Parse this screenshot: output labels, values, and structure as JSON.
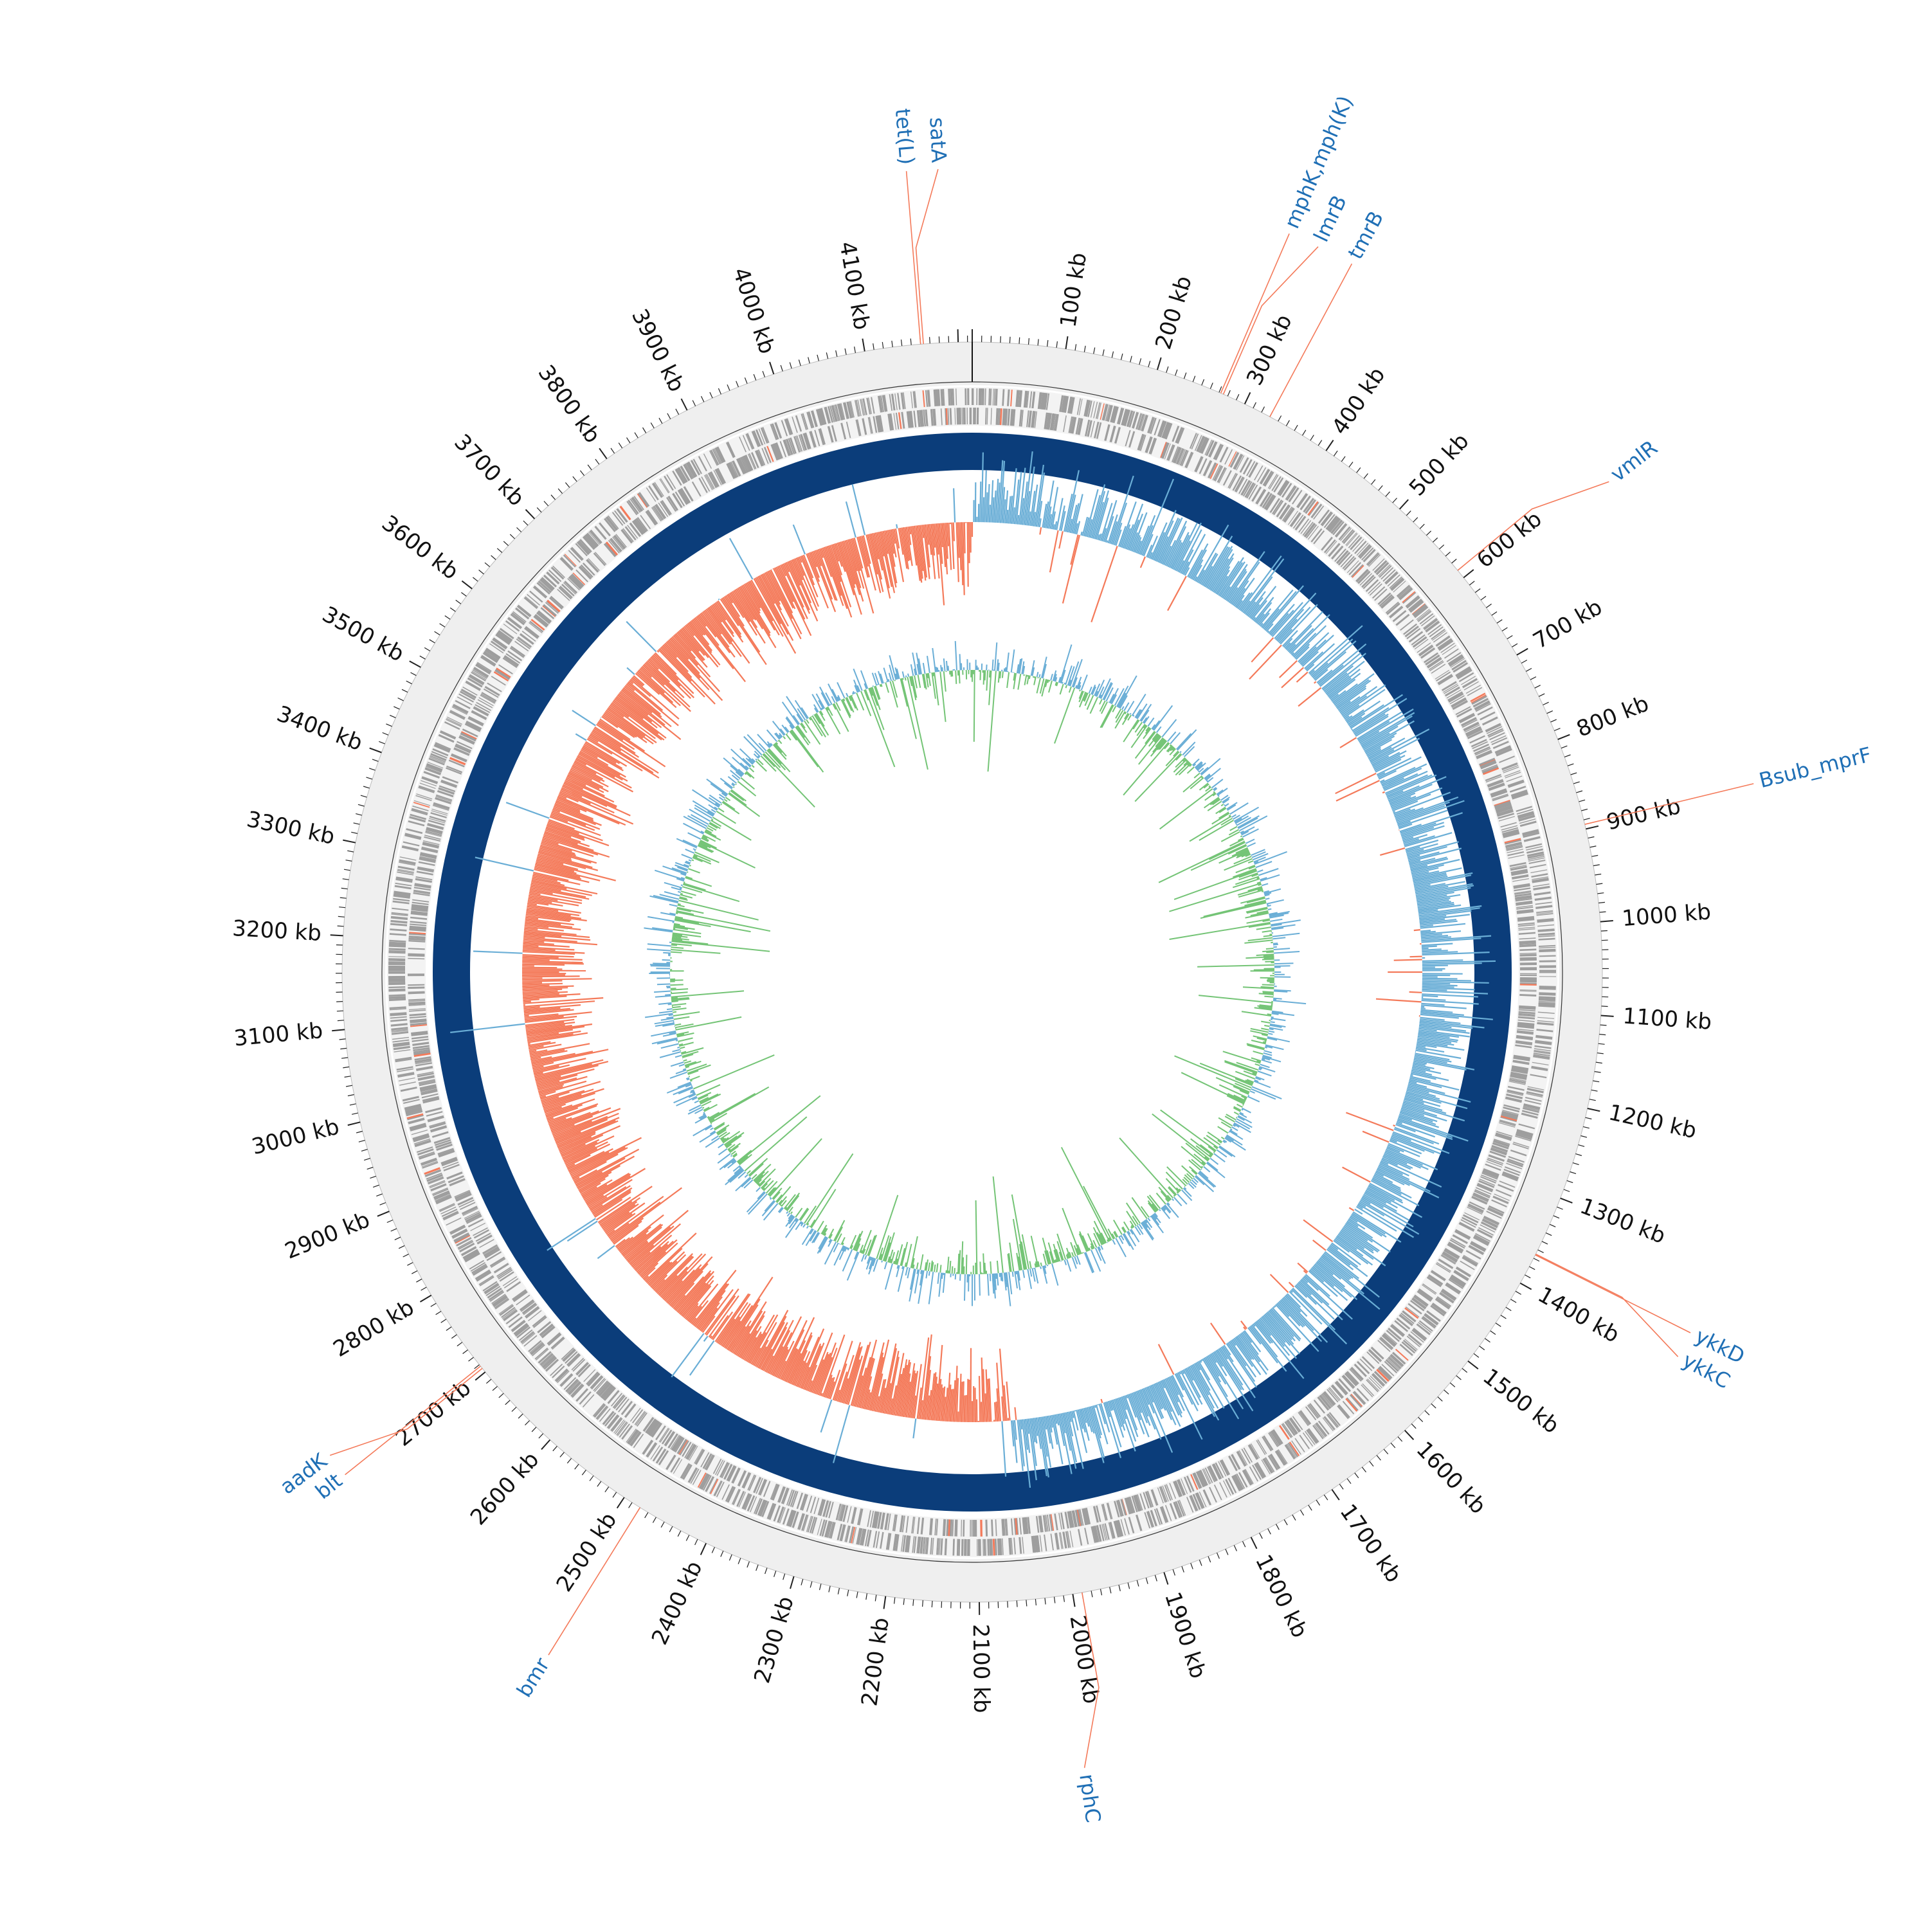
{
  "genome_map": {
    "genome_length_kb": 4215,
    "tick_labels": [
      "100 kb",
      "200 kb",
      "300 kb",
      "400 kb",
      "500 kb",
      "600 kb",
      "700 kb",
      "800 kb",
      "900 kb",
      "1000 kb",
      "1100 kb",
      "1200 kb",
      "1300 kb",
      "1400 kb",
      "1500 kb",
      "1600 kb",
      "1700 kb",
      "1800 kb",
      "1900 kb",
      "2000 kb",
      "2100 kb",
      "2200 kb",
      "2300 kb",
      "2400 kb",
      "2500 kb",
      "2600 kb",
      "2700 kb",
      "2800 kb",
      "2900 kb",
      "3000 kb",
      "3100 kb",
      "3200 kb",
      "3300 kb",
      "3400 kb",
      "3500 kb",
      "3600 kb",
      "3700 kb",
      "3800 kb",
      "3900 kb",
      "4000 kb",
      "4100 kb"
    ],
    "annotations": [
      {
        "label": "tet(L)",
        "position_kb": 4160
      },
      {
        "label": "satA",
        "position_kb": 4163
      },
      {
        "label": "mphK,mph(K)",
        "position_kb": 272
      },
      {
        "label": "lmrB",
        "position_kb": 275
      },
      {
        "label": "tmrB",
        "position_kb": 330
      },
      {
        "label": "vmlR",
        "position_kb": 590
      },
      {
        "label": "Bsub_mprF",
        "position_kb": 895
      },
      {
        "label": "ykkC",
        "position_kb": 1365
      },
      {
        "label": "ykkD",
        "position_kb": 1366
      },
      {
        "label": "rphC",
        "position_kb": 1990
      },
      {
        "label": "bmr",
        "position_kb": 2480
      },
      {
        "label": "aadK",
        "position_kb": 2705
      },
      {
        "label": "blt",
        "position_kb": 2708
      }
    ],
    "colors": {
      "background": "#ffffff",
      "outer_band": "#efefef",
      "feature_gray": "#9e9e9e",
      "feature_red": "#f47a5a",
      "blast_ring": "#0b3d7a",
      "gc_skew_negative": "#f47a5a",
      "gc_skew_positive": "#6aaed6",
      "gc_content_high": "#6aaed6",
      "gc_content_low": "#74c476",
      "label_text": "#1f6fb5",
      "label_line": "#f47a5a",
      "tick_text": "#111111"
    }
  }
}
